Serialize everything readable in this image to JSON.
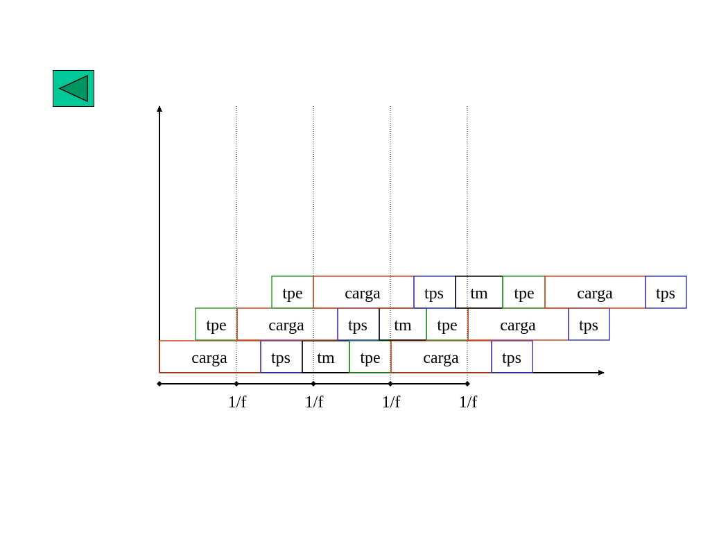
{
  "nav": {
    "back_button_icon": "left-triangle-icon",
    "back_color": "#00c896"
  },
  "colors": {
    "tpe": "#2ca02c",
    "carga": "#d2451e",
    "tps": "#3c3cc8",
    "tm": "#000000",
    "axis": "#000000"
  },
  "rows": [
    {
      "blocks": [
        {
          "label": "carga",
          "kind": "carga"
        },
        {
          "label": "tps",
          "kind": "tps"
        },
        {
          "label": "tm",
          "kind": "tm"
        },
        {
          "label": "tpe",
          "kind": "tpe"
        },
        {
          "label": "carga",
          "kind": "carga"
        },
        {
          "label": "tps",
          "kind": "tps"
        }
      ]
    },
    {
      "blocks": [
        {
          "label": "tpe",
          "kind": "tpe"
        },
        {
          "label": "carga",
          "kind": "carga"
        },
        {
          "label": "tps",
          "kind": "tps"
        },
        {
          "label": "tm",
          "kind": "tm"
        },
        {
          "label": "tpe",
          "kind": "tpe"
        },
        {
          "label": "carga",
          "kind": "carga"
        },
        {
          "label": "tps",
          "kind": "tps"
        }
      ]
    },
    {
      "blocks": [
        {
          "label": "tpe",
          "kind": "tpe"
        },
        {
          "label": "carga",
          "kind": "carga"
        },
        {
          "label": "tps",
          "kind": "tps"
        },
        {
          "label": "tm",
          "kind": "tm"
        },
        {
          "label": "tpe",
          "kind": "tpe"
        },
        {
          "label": "carga",
          "kind": "carga"
        },
        {
          "label": "tps",
          "kind": "tps"
        }
      ]
    }
  ],
  "period_labels": [
    "1/f",
    "1/f",
    "1/f",
    "1/f"
  ]
}
